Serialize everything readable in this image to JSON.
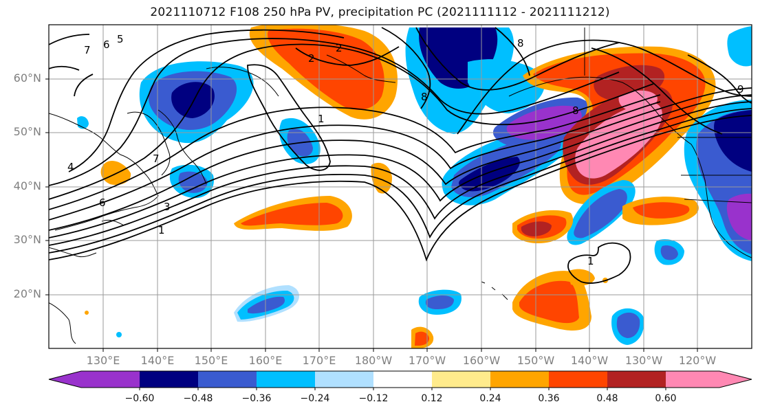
{
  "title": "2021110712 F108 250 hPa PV, precipitation PC (2021111112 - 2021111212)",
  "lat_labels": [
    "60°N",
    "50°N",
    "40°N",
    "30°N",
    "20°N"
  ],
  "lon_labels": [
    "130°E",
    "140°E",
    "150°E",
    "160°E",
    "170°E",
    "180°W",
    "170°W",
    "160°W",
    "150°W",
    "140°W",
    "130°W",
    "120°W"
  ],
  "colorbar": {
    "colors": [
      "#9932CC",
      "#000080",
      "#3A5BD0",
      "#00BFFF",
      "#B0E0FF",
      "#FFFFFF",
      "#FFEB8C",
      "#FFA500",
      "#FF4500",
      "#B22222",
      "#FF88B3"
    ],
    "ticks": [
      "−0.60",
      "−0.48",
      "−0.36",
      "−0.24",
      "−0.12",
      "0.12",
      "0.24",
      "0.36",
      "0.48",
      "0.60"
    ]
  },
  "contour_labels": [
    "1",
    "1",
    "1",
    "2",
    "2",
    "4",
    "5",
    "6",
    "6",
    "7",
    "7",
    "8",
    "8",
    "8",
    "9",
    "3"
  ]
}
